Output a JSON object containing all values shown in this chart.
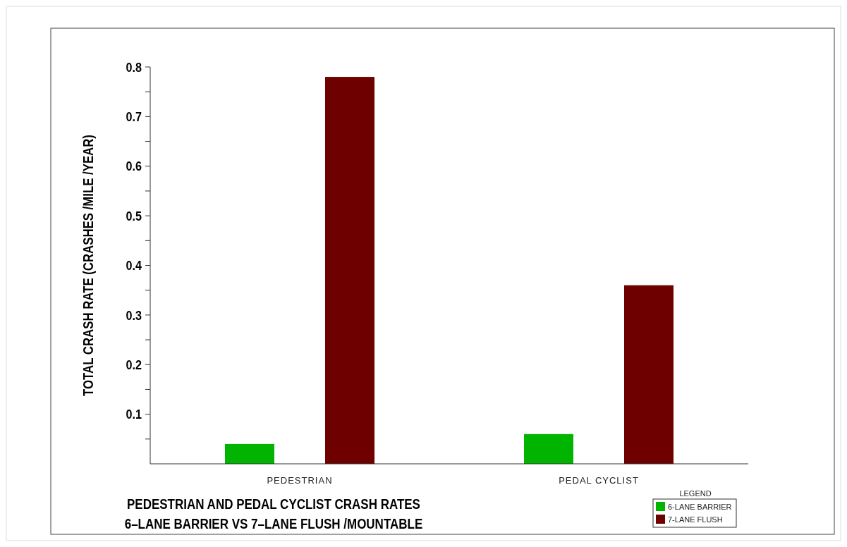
{
  "chart_data": {
    "type": "bar",
    "title": "PEDESTRIAN AND PEDAL CYCLIST CRASH RATES",
    "subtitle": "6–LANE BARRIER VS 7–LANE FLUSH /MOUNTABLE",
    "ylabel": "TOTAL CRASH RATE (CRASHES /MILE /YEAR)",
    "legend_title": "LEGEND",
    "categories": [
      "PEDESTRIAN",
      "PEDAL CYCLIST"
    ],
    "series": [
      {
        "name": "6-LANE BARRIER",
        "color": "#00b400",
        "values": [
          0.04,
          0.06
        ]
      },
      {
        "name": "7-LANE FLUSH",
        "color": "#6e0000",
        "values": [
          0.78,
          0.36
        ]
      }
    ],
    "ylim": [
      0,
      0.8
    ],
    "yticks": [
      {
        "value": 0.05,
        "label": null
      },
      0.1,
      {
        "value": 0.15,
        "label": null
      },
      0.2,
      {
        "value": 0.25,
        "label": null
      },
      0.3,
      {
        "value": 0.35,
        "label": null
      },
      0.4,
      {
        "value": 0.45,
        "label": null
      },
      0.5,
      {
        "value": 0.55,
        "label": null
      },
      0.6,
      {
        "value": 0.65,
        "label": null
      },
      0.7,
      {
        "value": 0.75,
        "label": null
      },
      0.8
    ],
    "grid": false,
    "legend": "bottom right"
  }
}
